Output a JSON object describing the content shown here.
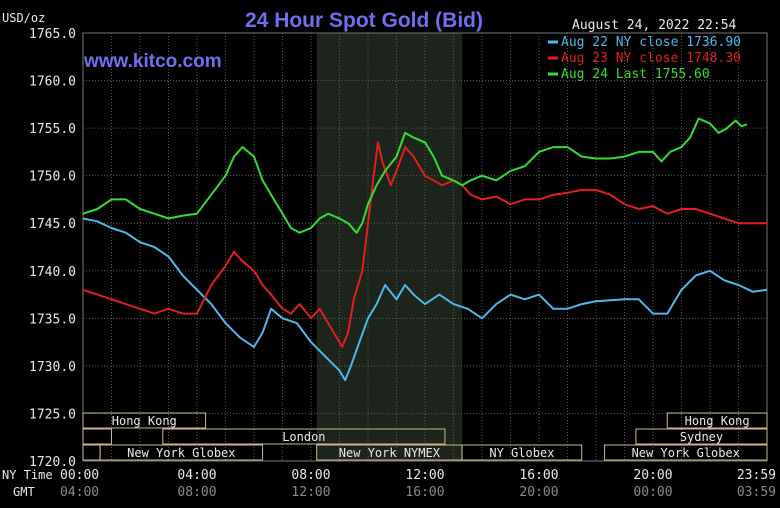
{
  "header": {
    "title": "24 Hour Spot Gold (Bid)",
    "unit": "USD/oz",
    "timestamp": "August 24, 2022 22:54",
    "website": "www.kitco.com"
  },
  "legend": [
    {
      "label": "Aug 22 NY close 1736.90",
      "color": "#4fb8e8"
    },
    {
      "label": "Aug 23 NY close 1748.30",
      "color": "#e02020"
    },
    {
      "label": "Aug 24 Last 1755.60",
      "color": "#33dd33"
    }
  ],
  "sessions": [
    {
      "label": "Hong Kong",
      "row": 0,
      "start": 0,
      "end": 4.3
    },
    {
      "label": "Hong Kong",
      "row": 0,
      "start": 20.5,
      "end": 24
    },
    {
      "label": "London",
      "row": 1,
      "start": 2.8,
      "end": 12.7
    },
    {
      "label": "Sydney",
      "row": 1,
      "start": 19.4,
      "end": 24
    },
    {
      "label": "New York Globex",
      "row": 2,
      "start": 0.6,
      "end": 6.3
    },
    {
      "label": "New York NYMEX",
      "row": 2,
      "start": 8.2,
      "end": 13.3
    },
    {
      "label": "NY Globex",
      "row": 2,
      "start": 13.3,
      "end": 17.5
    },
    {
      "label": "New York Globex",
      "row": 2,
      "start": 18.3,
      "end": 24
    }
  ],
  "time_rows": {
    "ny_label": "NY Time",
    "gmt_label": "GMT",
    "ny_ticks": [
      "00:00",
      "04:00",
      "08:00",
      "12:00",
      "16:00",
      "20:00",
      "23:59"
    ],
    "gmt_ticks": [
      "04:00",
      "08:00",
      "12:00",
      "16:00",
      "20:00",
      "00:00",
      "03:59"
    ]
  },
  "colors": {
    "background": "#000000",
    "grid": "#5a5a5a",
    "title": "#6f6ff0",
    "website": "#6f6ff0",
    "shade": "#1c241c",
    "session_box": "#c8b88a"
  },
  "chart_data": {
    "type": "line",
    "title": "24 Hour Spot Gold (Bid)",
    "ylabel": "USD/oz",
    "xlim": [
      0,
      24
    ],
    "ylim": [
      1720,
      1765
    ],
    "yticks": [
      1720,
      1725,
      1730,
      1735,
      1740,
      1745,
      1750,
      1755,
      1760,
      1765
    ],
    "ytick_labels": [
      "1720.0",
      "1725.0",
      "1730.0",
      "1735.0",
      "1740.0",
      "1745.0",
      "1750.0",
      "1755.0",
      "1760.0",
      "1765.0"
    ],
    "xticks": [
      0,
      4,
      8,
      12,
      16,
      20,
      24
    ],
    "shaded_range": [
      8.2,
      13.3
    ],
    "grid": true,
    "legend_position": "top-right",
    "series": [
      {
        "name": "Aug 22 NY close 1736.90",
        "color": "#4fb8e8",
        "points": [
          [
            0,
            1745.5
          ],
          [
            0.5,
            1745.2
          ],
          [
            1.0,
            1744.5
          ],
          [
            1.5,
            1744.0
          ],
          [
            2.0,
            1743.0
          ],
          [
            2.5,
            1742.5
          ],
          [
            3.0,
            1741.5
          ],
          [
            3.5,
            1739.5
          ],
          [
            4.0,
            1738.0
          ],
          [
            4.5,
            1736.5
          ],
          [
            5.0,
            1734.5
          ],
          [
            5.5,
            1733.0
          ],
          [
            6.0,
            1732.0
          ],
          [
            6.3,
            1733.5
          ],
          [
            6.6,
            1736.0
          ],
          [
            7.0,
            1735.0
          ],
          [
            7.5,
            1734.5
          ],
          [
            8.0,
            1732.5
          ],
          [
            8.5,
            1731.0
          ],
          [
            9.0,
            1729.5
          ],
          [
            9.2,
            1728.5
          ],
          [
            9.4,
            1730.0
          ],
          [
            9.7,
            1732.5
          ],
          [
            10.0,
            1735.0
          ],
          [
            10.3,
            1736.5
          ],
          [
            10.6,
            1738.5
          ],
          [
            11.0,
            1737.0
          ],
          [
            11.3,
            1738.5
          ],
          [
            11.6,
            1737.5
          ],
          [
            12.0,
            1736.5
          ],
          [
            12.5,
            1737.5
          ],
          [
            13.0,
            1736.5
          ],
          [
            13.5,
            1736.0
          ],
          [
            14.0,
            1735.0
          ],
          [
            14.5,
            1736.5
          ],
          [
            15.0,
            1737.5
          ],
          [
            15.5,
            1737.0
          ],
          [
            16.0,
            1737.5
          ],
          [
            16.5,
            1736.0
          ],
          [
            17.0,
            1736.0
          ],
          [
            17.5,
            1736.5
          ],
          [
            18.0,
            1736.8
          ],
          [
            19.0,
            1737.0
          ],
          [
            19.5,
            1737.0
          ],
          [
            20.0,
            1735.5
          ],
          [
            20.5,
            1735.5
          ],
          [
            21.0,
            1738.0
          ],
          [
            21.5,
            1739.5
          ],
          [
            22.0,
            1740.0
          ],
          [
            22.5,
            1739.0
          ],
          [
            23.0,
            1738.5
          ],
          [
            23.5,
            1737.8
          ],
          [
            24.0,
            1738.0
          ]
        ]
      },
      {
        "name": "Aug 23 NY close 1748.30",
        "color": "#e02020",
        "points": [
          [
            0,
            1738.0
          ],
          [
            0.5,
            1737.5
          ],
          [
            1.0,
            1737.0
          ],
          [
            1.5,
            1736.5
          ],
          [
            2.0,
            1736.0
          ],
          [
            2.5,
            1735.5
          ],
          [
            3.0,
            1736.0
          ],
          [
            3.5,
            1735.5
          ],
          [
            4.0,
            1735.5
          ],
          [
            4.5,
            1738.5
          ],
          [
            5.0,
            1740.5
          ],
          [
            5.3,
            1742.0
          ],
          [
            5.6,
            1741.0
          ],
          [
            6.0,
            1740.0
          ],
          [
            6.3,
            1738.5
          ],
          [
            6.6,
            1737.5
          ],
          [
            7.0,
            1736.0
          ],
          [
            7.3,
            1735.5
          ],
          [
            7.6,
            1736.5
          ],
          [
            8.0,
            1735.0
          ],
          [
            8.3,
            1736.0
          ],
          [
            8.6,
            1734.5
          ],
          [
            8.9,
            1733.0
          ],
          [
            9.1,
            1732.0
          ],
          [
            9.3,
            1733.5
          ],
          [
            9.5,
            1737.0
          ],
          [
            9.8,
            1740.0
          ],
          [
            10.0,
            1745.0
          ],
          [
            10.2,
            1750.0
          ],
          [
            10.35,
            1753.5
          ],
          [
            10.5,
            1751.5
          ],
          [
            10.8,
            1749.0
          ],
          [
            11.0,
            1750.5
          ],
          [
            11.3,
            1753.0
          ],
          [
            11.6,
            1752.0
          ],
          [
            12.0,
            1750.0
          ],
          [
            12.3,
            1749.5
          ],
          [
            12.6,
            1749.0
          ],
          [
            13.0,
            1749.5
          ],
          [
            13.3,
            1749.0
          ],
          [
            13.6,
            1748.0
          ],
          [
            14.0,
            1747.5
          ],
          [
            14.5,
            1747.8
          ],
          [
            15.0,
            1747.0
          ],
          [
            15.5,
            1747.5
          ],
          [
            16.0,
            1747.5
          ],
          [
            16.5,
            1748.0
          ],
          [
            17.0,
            1748.2
          ],
          [
            17.5,
            1748.5
          ],
          [
            18.0,
            1748.5
          ],
          [
            18.5,
            1748.0
          ],
          [
            19.0,
            1747.0
          ],
          [
            19.5,
            1746.5
          ],
          [
            20.0,
            1746.8
          ],
          [
            20.5,
            1746.0
          ],
          [
            21.0,
            1746.5
          ],
          [
            21.5,
            1746.5
          ],
          [
            22.0,
            1746.0
          ],
          [
            22.5,
            1745.5
          ],
          [
            23.0,
            1745.0
          ],
          [
            23.5,
            1745.0
          ],
          [
            24.0,
            1745.0
          ]
        ]
      },
      {
        "name": "Aug 24 Last 1755.60",
        "color": "#33dd33",
        "points": [
          [
            0,
            1746.0
          ],
          [
            0.5,
            1746.5
          ],
          [
            1.0,
            1747.5
          ],
          [
            1.5,
            1747.5
          ],
          [
            2.0,
            1746.5
          ],
          [
            2.5,
            1746.0
          ],
          [
            3.0,
            1745.5
          ],
          [
            3.5,
            1745.8
          ],
          [
            4.0,
            1746.0
          ],
          [
            4.5,
            1748.0
          ],
          [
            5.0,
            1750.0
          ],
          [
            5.3,
            1752.0
          ],
          [
            5.6,
            1753.0
          ],
          [
            6.0,
            1752.0
          ],
          [
            6.3,
            1749.5
          ],
          [
            6.6,
            1748.0
          ],
          [
            7.0,
            1746.0
          ],
          [
            7.3,
            1744.5
          ],
          [
            7.6,
            1744.0
          ],
          [
            8.0,
            1744.5
          ],
          [
            8.3,
            1745.5
          ],
          [
            8.6,
            1746.0
          ],
          [
            9.0,
            1745.5
          ],
          [
            9.3,
            1745.0
          ],
          [
            9.6,
            1744.0
          ],
          [
            9.8,
            1745.0
          ],
          [
            10.0,
            1747.0
          ],
          [
            10.3,
            1749.0
          ],
          [
            10.6,
            1750.5
          ],
          [
            11.0,
            1752.0
          ],
          [
            11.3,
            1754.5
          ],
          [
            11.6,
            1754.0
          ],
          [
            12.0,
            1753.5
          ],
          [
            12.3,
            1752.0
          ],
          [
            12.6,
            1750.0
          ],
          [
            13.0,
            1749.5
          ],
          [
            13.3,
            1749.0
          ],
          [
            13.6,
            1749.5
          ],
          [
            14.0,
            1750.0
          ],
          [
            14.5,
            1749.5
          ],
          [
            15.0,
            1750.5
          ],
          [
            15.5,
            1751.0
          ],
          [
            16.0,
            1752.5
          ],
          [
            16.5,
            1753.0
          ],
          [
            17.0,
            1753.0
          ],
          [
            17.5,
            1752.0
          ],
          [
            18.0,
            1751.8
          ],
          [
            18.5,
            1751.8
          ],
          [
            19.0,
            1752.0
          ],
          [
            19.5,
            1752.5
          ],
          [
            20.0,
            1752.5
          ],
          [
            20.3,
            1751.5
          ],
          [
            20.6,
            1752.5
          ],
          [
            21.0,
            1753.0
          ],
          [
            21.3,
            1754.0
          ],
          [
            21.6,
            1756.0
          ],
          [
            22.0,
            1755.5
          ],
          [
            22.3,
            1754.5
          ],
          [
            22.6,
            1755.0
          ],
          [
            22.9,
            1755.8
          ],
          [
            23.1,
            1755.2
          ],
          [
            23.3,
            1755.4
          ]
        ]
      }
    ]
  }
}
